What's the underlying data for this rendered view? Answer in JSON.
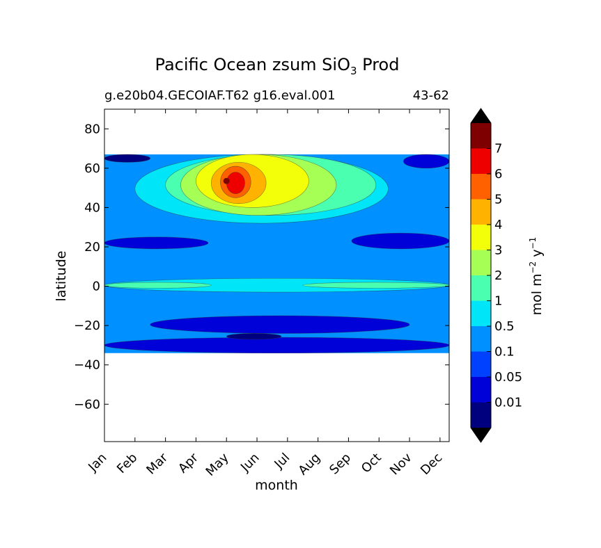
{
  "chart_data": {
    "type": "contourf",
    "title": "Pacific Ocean zsum SiO",
    "title_subscript": "3",
    "title_suffix": " Prod",
    "subtitle_left": "g.e20b04.GECOIAF.T62 g16.eval.001",
    "subtitle_right": "43-62",
    "xlabel": "month",
    "ylabel": "latitude",
    "x_ticks": [
      "Jan",
      "Feb",
      "Mar",
      "Apr",
      "May",
      "Jun",
      "Jul",
      "Aug",
      "Sep",
      "Oct",
      "Nov",
      "Dec"
    ],
    "y_ticks": [
      80,
      60,
      40,
      20,
      0,
      -20,
      -40,
      -60
    ],
    "y_tick_labels": [
      "80",
      "60",
      "40",
      "20",
      "0",
      "−20",
      "−40",
      "−60"
    ],
    "xlim": [
      0,
      11.3
    ],
    "ylim": [
      -79,
      90
    ],
    "data_lat_range": [
      -34,
      67
    ],
    "levels": [
      0,
      0.01,
      0.05,
      0.1,
      0.5,
      1,
      2,
      3,
      4,
      5,
      6,
      7,
      8
    ],
    "level_colors": [
      "#00007f",
      "#0000d8",
      "#0040ff",
      "#0090ff",
      "#00e5f7",
      "#4bffb0",
      "#a6ff55",
      "#f2ff08",
      "#ffb200",
      "#ff6000",
      "#ee0000",
      "#7f0000"
    ],
    "extend_colors": {
      "min": "#000000",
      "max": "#000000"
    },
    "colorbar_label": "mol m",
    "colorbar_label_exp1": "−2",
    "colorbar_label_mid": " y",
    "colorbar_label_exp2": "−1",
    "colorbar_tick_labels": [
      "0.01",
      "0.05",
      "0.1",
      "0.5",
      "1",
      "2",
      "3",
      "4",
      "5",
      "6",
      "7"
    ],
    "bands": [
      {
        "level": 1,
        "lat_range": [
          -34,
          -26
        ],
        "month_range": [
          0,
          11.3
        ],
        "value_range": "0.05-0.1"
      },
      {
        "level": 1,
        "lat_range": [
          -24,
          -15
        ],
        "month_range": [
          1.5,
          10
        ],
        "value_range": "0.05-0.1"
      },
      {
        "level": 0,
        "lat_range": [
          -27,
          -24
        ],
        "month_range": [
          4,
          5.8
        ],
        "value_range": "0.01-0.05"
      },
      {
        "level": 1,
        "lat_range": [
          19,
          25
        ],
        "month_range": [
          0,
          3.4
        ],
        "value_range": "0.05-0.1"
      },
      {
        "level": 1,
        "lat_range": [
          19,
          27
        ],
        "month_range": [
          8.1,
          11.3
        ],
        "value_range": "0.05-0.1"
      },
      {
        "level": 4,
        "lat_range": [
          -3,
          4
        ],
        "month_range": [
          0,
          11.3
        ],
        "value_range": "0.5-1"
      },
      {
        "level": 5,
        "lat_range": [
          -1,
          2
        ],
        "month_range": [
          0,
          3.5
        ],
        "value_range": "1-2"
      },
      {
        "level": 5,
        "lat_range": [
          -1,
          2
        ],
        "month_range": [
          6.5,
          11.3
        ],
        "value_range": "1-2"
      },
      {
        "level": 4,
        "lat_range": [
          32,
          67
        ],
        "month_range": [
          1,
          9.3
        ],
        "value_range": "0.5-1"
      },
      {
        "level": 5,
        "lat_range": [
          36,
          67
        ],
        "month_range": [
          2,
          8.9
        ],
        "value_range": "1-2"
      },
      {
        "level": 6,
        "lat_range": [
          36,
          67
        ],
        "month_range": [
          2.5,
          7.6
        ],
        "value_range": "2-3"
      },
      {
        "level": 7,
        "lat_range": [
          40,
          67
        ],
        "month_range": [
          3,
          6.7
        ],
        "value_range": "3-4"
      },
      {
        "level": 8,
        "lat_range": [
          42,
          63
        ],
        "month_range": [
          3.5,
          5.3
        ],
        "value_range": "4-5"
      },
      {
        "level": 9,
        "lat_range": [
          45,
          61
        ],
        "month_range": [
          3.8,
          4.8
        ],
        "value_range": "5-6"
      },
      {
        "level": 10,
        "lat_range": [
          47,
          58
        ],
        "month_range": [
          4,
          4.6
        ],
        "value_range": "6-7"
      },
      {
        "level": 11,
        "lat_range": [
          52,
          55
        ],
        "month_range": [
          3.9,
          4.1
        ],
        "value_range": "7-8"
      },
      {
        "level": 1,
        "lat_range": [
          60,
          67
        ],
        "month_range": [
          9.8,
          11.3
        ],
        "value_range": "0.05-0.1"
      },
      {
        "level": 0,
        "lat_range": [
          63,
          67
        ],
        "month_range": [
          0,
          1.5
        ],
        "value_range": "0.01-0.05"
      }
    ]
  }
}
